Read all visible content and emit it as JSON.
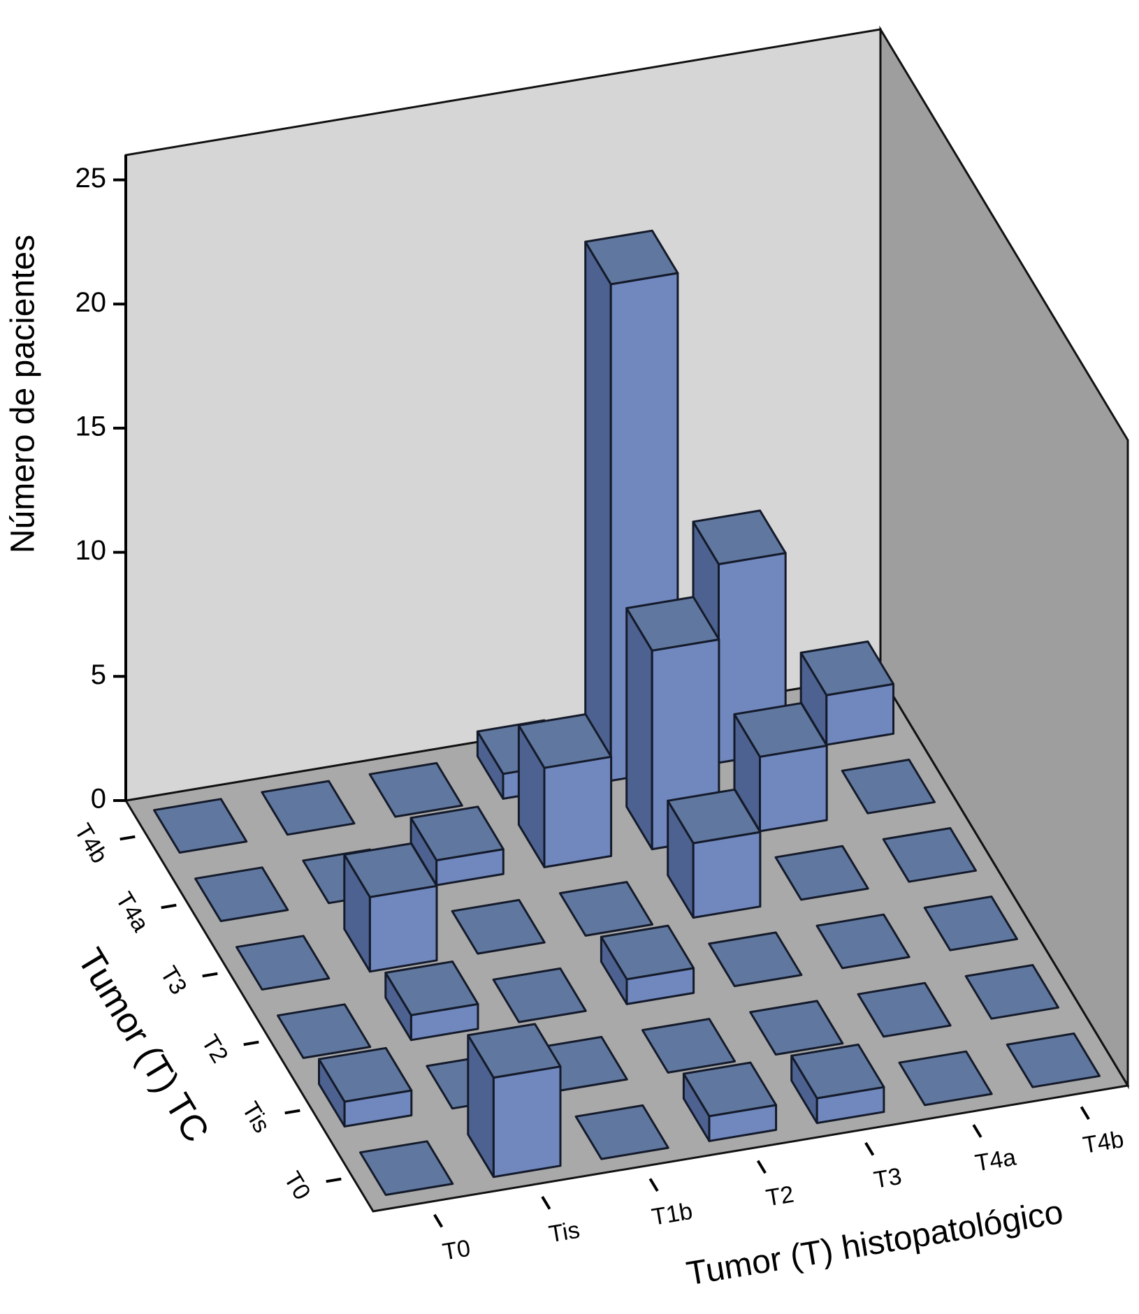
{
  "chart_data": {
    "type": "bar3d",
    "x_label": "Tumor (T) histopatológico",
    "y_label": "Tumor (T) TC",
    "z_label": "Número de pacientes",
    "x_categories": [
      "T0",
      "Tis",
      "T1b",
      "T2",
      "T3",
      "T4a",
      "T4b"
    ],
    "y_categories": [
      "T0",
      "Tis",
      "T2",
      "T3",
      "T4a",
      "T4b"
    ],
    "values": [
      [
        0,
        4,
        0,
        1,
        1,
        0,
        0
      ],
      [
        1,
        0,
        0,
        0,
        0,
        0,
        0
      ],
      [
        0,
        1,
        0,
        1,
        0,
        0,
        0
      ],
      [
        0,
        3,
        0,
        0,
        3,
        0,
        0
      ],
      [
        0,
        0,
        1,
        4,
        8,
        3,
        0
      ],
      [
        0,
        0,
        0,
        1,
        20,
        8,
        2
      ]
    ],
    "color": "#7088be",
    "zlim": [
      0,
      26
    ],
    "zticks": [
      0,
      5,
      10,
      15,
      20,
      25
    ]
  }
}
